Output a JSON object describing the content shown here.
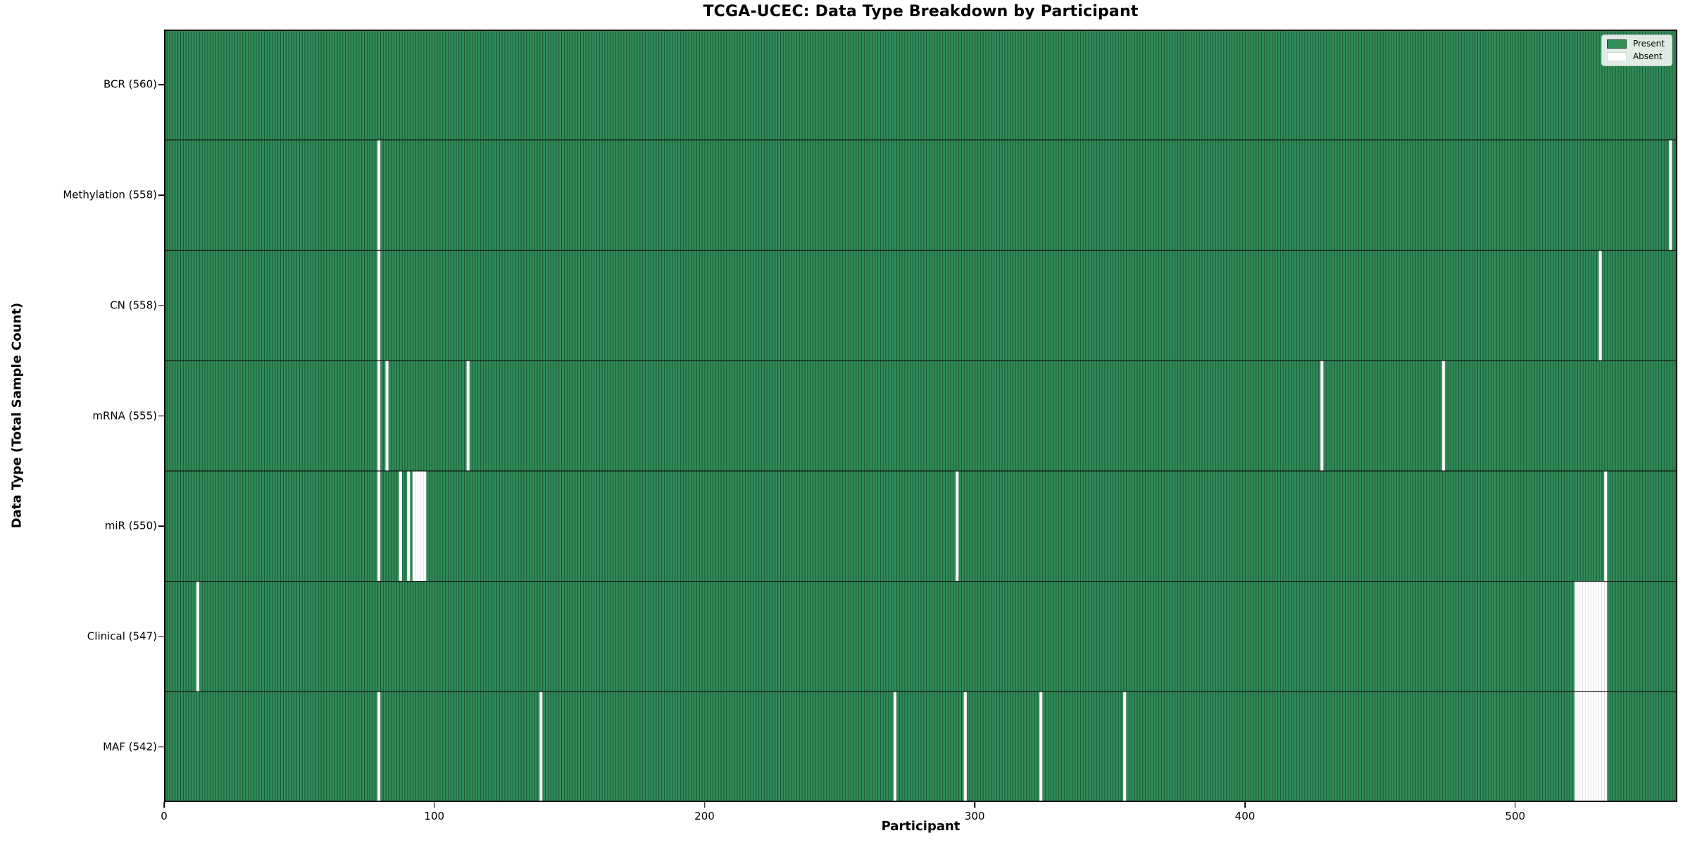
{
  "chart_data": {
    "type": "heatmap",
    "title": "TCGA-UCEC: Data Type Breakdown by Participant",
    "xlabel": "Participant",
    "ylabel": "Data Type (Total Sample Count)",
    "x_ticks": [
      0,
      100,
      200,
      300,
      400,
      500
    ],
    "xlim": [
      0,
      560
    ],
    "n_participants": 560,
    "grid": false,
    "legend": {
      "position": "upper right",
      "present_label": "Present",
      "absent_label": "Absent"
    },
    "colors": {
      "present": "#2f8d58",
      "bar_edge": "#1a4f31",
      "absent": "#ffffff",
      "absent_edge": "#d9d9d9",
      "row_divider": "#161616",
      "plot_border": "#000000"
    },
    "rows": [
      {
        "data_type": "BCR",
        "label": "BCR (560)",
        "total": 560,
        "absent_participants": []
      },
      {
        "data_type": "Methylation",
        "label": "Methylation (558)",
        "total": 558,
        "absent_participants": [
          79,
          557
        ]
      },
      {
        "data_type": "CN",
        "label": "CN (558)",
        "total": 558,
        "absent_participants": [
          79,
          531
        ]
      },
      {
        "data_type": "mRNA",
        "label": "mRNA (555)",
        "total": 555,
        "absent_participants": [
          79,
          82,
          112,
          428,
          473
        ]
      },
      {
        "data_type": "miR",
        "label": "miR (550)",
        "total": 550,
        "absent_participants": [
          79,
          87,
          90,
          92,
          93,
          94,
          95,
          96,
          293,
          533
        ]
      },
      {
        "data_type": "Clinical",
        "label": "Clinical (547)",
        "total": 547,
        "absent_participants": [
          12,
          522,
          523,
          524,
          525,
          526,
          527,
          528,
          529,
          530,
          531,
          532,
          533
        ]
      },
      {
        "data_type": "MAF",
        "label": "MAF (542)",
        "total": 542,
        "absent_participants": [
          79,
          139,
          270,
          296,
          324,
          355,
          522,
          523,
          524,
          525,
          526,
          527,
          528,
          529,
          530,
          531,
          532,
          533
        ]
      }
    ]
  }
}
